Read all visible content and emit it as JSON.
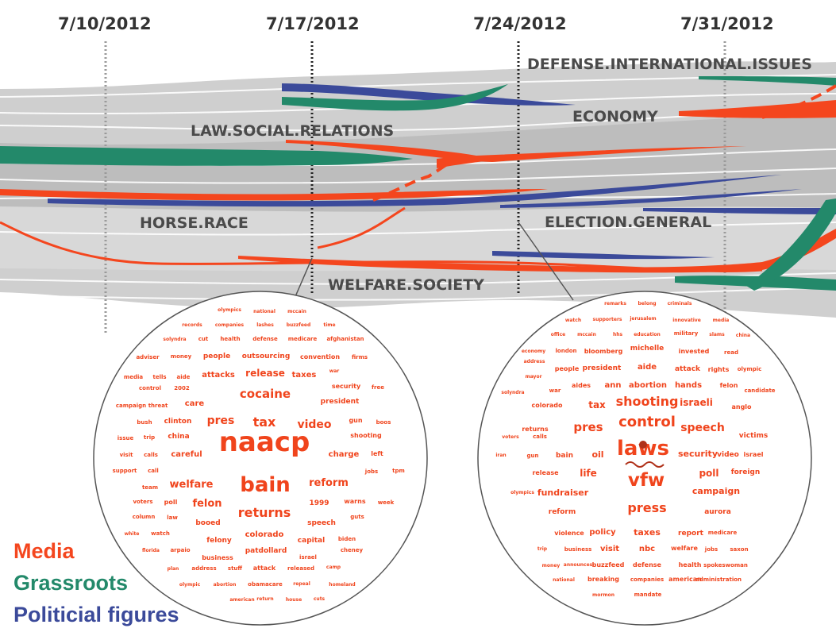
{
  "dates": [
    "7/10/2012",
    "7/17/2012",
    "7/24/2012",
    "7/31/2012"
  ],
  "topics": {
    "defense": "DEFENSE.INTERNATIONAL.ISSUES",
    "economy": "ECONOMY",
    "law": "LAW.SOCIAL.RELATIONS",
    "horse": "HORSE.RACE",
    "election": "ELECTION.GENERAL",
    "welfare": "WELFARE.SOCIETY"
  },
  "legend": {
    "media": "Media",
    "grassroots": "Grassroots",
    "political": "Politicial figures"
  },
  "colors": {
    "media": "#f4461e",
    "grassroots": "#23896a",
    "political": "#3b4a9a",
    "stream": "#c8c8c8",
    "word": "#f0441c"
  },
  "cloud_left_words": [
    "olympics",
    "national",
    "mccain",
    "records",
    "companies",
    "lashes",
    "buzzfeed",
    "time",
    "solyndra",
    "cut",
    "health",
    "defense",
    "medicare",
    "afghanistan",
    "adviser",
    "money",
    "people",
    "outsourcing",
    "convention",
    "firms",
    "media",
    "tells",
    "aide",
    "attacks",
    "release",
    "taxes",
    "war",
    "control",
    "2002",
    "security",
    "free",
    "campaign",
    "threat",
    "care",
    "cocaine",
    "president",
    "bush",
    "clinton",
    "pres",
    "tax",
    "video",
    "gun",
    "boos",
    "issue",
    "trip",
    "china",
    "shooting",
    "visit",
    "calls",
    "careful",
    "naacp",
    "charge",
    "left",
    "support",
    "call",
    "jobs",
    "tpm",
    "team",
    "welfare",
    "bain",
    "reform",
    "voters",
    "poll",
    "felon",
    "1999",
    "warns",
    "week",
    "column",
    "law",
    "returns",
    "guts",
    "booed",
    "speech",
    "white",
    "watch",
    "felony",
    "colorado",
    "capital",
    "biden",
    "florida",
    "arpaio",
    "business",
    "patdollard",
    "cheney",
    "plan",
    "address",
    "stuff",
    "attack",
    "released",
    "camp",
    "israel",
    "olympic",
    "abortion",
    "obamacare",
    "repeal",
    "homeland",
    "american",
    "return",
    "house",
    "cuts"
  ],
  "cloud_right_words": [
    "remarks",
    "belong",
    "criminals",
    "watch",
    "supporters",
    "jerusalem",
    "innovative",
    "media",
    "office",
    "mccain",
    "hhs",
    "education",
    "military",
    "slams",
    "china",
    "economy",
    "london",
    "bloomberg",
    "michelle",
    "invested",
    "read",
    "address",
    "mayor",
    "people",
    "president",
    "aide",
    "attack",
    "rights",
    "olympic",
    "war",
    "aides",
    "ann",
    "abortion",
    "hands",
    "felon",
    "candidate",
    "solyndra",
    "colorado",
    "tax",
    "shooting",
    "israeli",
    "anglo",
    "returns",
    "pres",
    "control",
    "speech",
    "victims",
    "voters",
    "calls",
    "iran",
    "gun",
    "bain",
    "oil",
    "laws",
    "security",
    "video",
    "israel",
    "release",
    "life",
    "vfw",
    "poll",
    "foreign",
    "olympics",
    "fundraiser",
    "campaign",
    "reform",
    "press",
    "aurora",
    "violence",
    "policy",
    "taxes",
    "report",
    "medicare",
    "trip",
    "business",
    "visit",
    "nbc",
    "welfare",
    "jobs",
    "saxon",
    "money",
    "announces",
    "buzzfeed",
    "defense",
    "health",
    "spokeswoman",
    "national",
    "breaking",
    "companies",
    "american",
    "administration",
    "mormon",
    "mandate"
  ]
}
